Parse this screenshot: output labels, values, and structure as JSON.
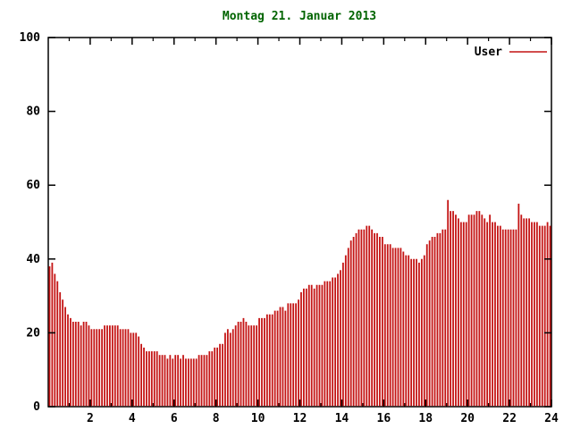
{
  "chart_data": {
    "type": "bar",
    "title": "Montag 21. Januar 2013",
    "series": [
      {
        "name": "User",
        "color": "#c41414"
      }
    ],
    "xlabel": "",
    "ylabel": "",
    "xlim": [
      0,
      24
    ],
    "ylim": [
      0,
      100
    ],
    "yticks": [
      0,
      20,
      40,
      60,
      80,
      100
    ],
    "xticks_major": [
      2,
      4,
      6,
      8,
      10,
      12,
      14,
      16,
      18,
      20,
      22,
      24
    ],
    "xticks_minor": [
      1,
      3,
      5,
      7,
      9,
      11,
      13,
      15,
      17,
      19,
      21,
      23
    ],
    "grid": false,
    "legend_position": "top-right",
    "samples_per_hour": 8,
    "values": [
      38,
      39,
      36,
      34,
      31,
      29,
      27,
      25,
      24,
      23,
      23,
      23,
      22,
      23,
      23,
      22,
      21,
      21,
      21,
      21,
      21,
      22,
      22,
      22,
      22,
      22,
      22,
      21,
      21,
      21,
      21,
      20,
      20,
      20,
      19,
      17,
      16,
      15,
      15,
      15,
      15,
      15,
      14,
      14,
      14,
      13,
      14,
      13,
      14,
      14,
      13,
      14,
      13,
      13,
      13,
      13,
      13,
      14,
      14,
      14,
      14,
      15,
      15,
      16,
      16,
      17,
      17,
      20,
      21,
      20,
      21,
      22,
      23,
      23,
      24,
      23,
      22,
      22,
      22,
      22,
      24,
      24,
      24,
      25,
      25,
      25,
      26,
      26,
      27,
      27,
      26,
      28,
      28,
      28,
      28,
      29,
      31,
      32,
      32,
      33,
      33,
      32,
      33,
      33,
      33,
      34,
      34,
      34,
      35,
      35,
      36,
      37,
      39,
      41,
      43,
      45,
      46,
      47,
      48,
      48,
      48,
      49,
      49,
      48,
      47,
      47,
      46,
      46,
      44,
      44,
      44,
      43,
      43,
      43,
      43,
      42,
      41,
      41,
      40,
      40,
      40,
      39,
      40,
      41,
      44,
      45,
      46,
      46,
      47,
      47,
      48,
      48,
      56,
      53,
      53,
      52,
      51,
      50,
      50,
      50,
      52,
      52,
      52,
      53,
      53,
      52,
      51,
      50,
      52,
      50,
      50,
      49,
      49,
      48,
      48,
      48,
      48,
      48,
      48,
      55,
      52,
      51,
      51,
      51,
      50,
      50,
      50,
      49,
      49,
      49,
      50,
      49
    ],
    "colors": {
      "title": "#006400",
      "axis": "#000000",
      "tick_label": "#000000",
      "bar": "#c41414",
      "legend_text": "#000000"
    }
  }
}
